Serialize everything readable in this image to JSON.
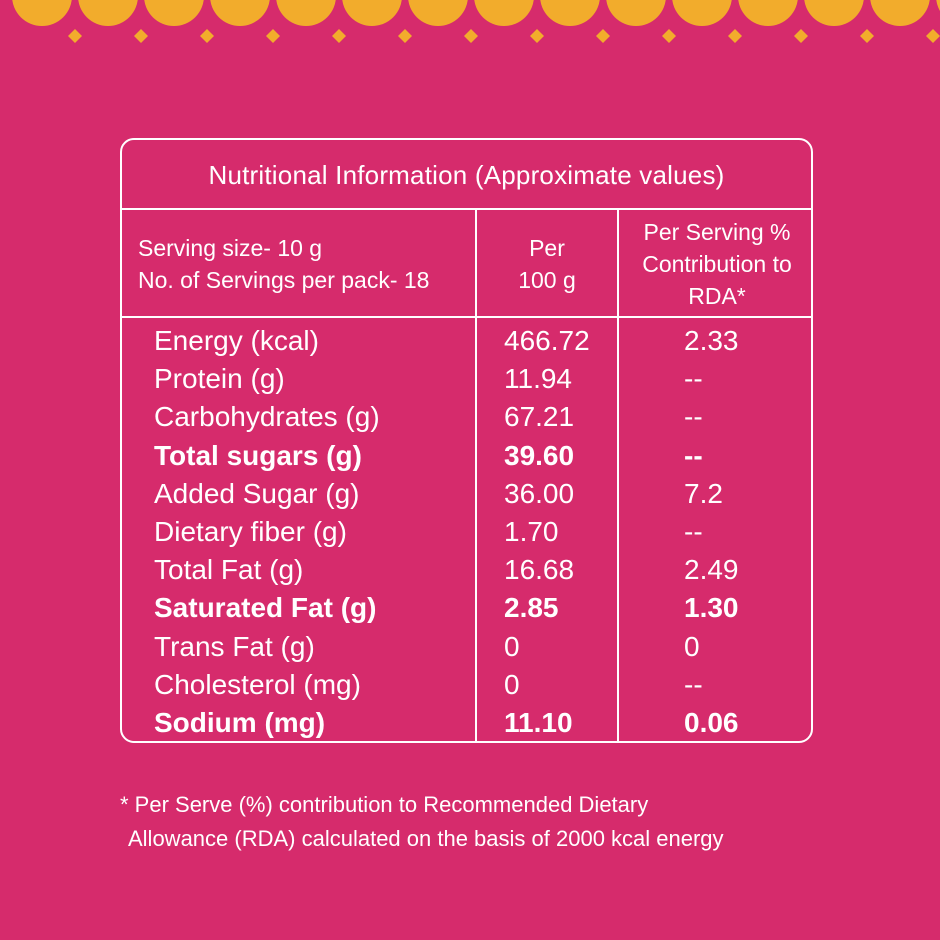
{
  "colors": {
    "background": "#d62b6c",
    "accent": "#f2ac2c",
    "text": "#ffffff"
  },
  "decoration": "scalloped-border",
  "panel": {
    "title": "Nutritional Information (Approximate values)",
    "header": {
      "serving_size": "Serving size- 10 g",
      "servings_per_pack": "No. of Servings per pack- 18",
      "per100_line1": "Per",
      "per100_line2": "100 g",
      "rda_line1": "Per Serving %",
      "rda_line2": "Contribution to",
      "rda_line3": "RDA*"
    },
    "rows": [
      {
        "name": "Energy (kcal)",
        "per100": "466.72",
        "rda": "2.33",
        "bold": false
      },
      {
        "name": "Protein (g)",
        "per100": "11.94",
        "rda": "--",
        "bold": false
      },
      {
        "name": "Carbohydrates (g)",
        "per100": "67.21",
        "rda": "--",
        "bold": false
      },
      {
        "name": "Total sugars (g)",
        "per100": "39.60",
        "rda": "--",
        "bold": true
      },
      {
        "name": "Added Sugar (g)",
        "per100": "36.00",
        "rda": "7.2",
        "bold": false
      },
      {
        "name": "Dietary fiber (g)",
        "per100": "1.70",
        "rda": "--",
        "bold": false
      },
      {
        "name": "Total Fat (g)",
        "per100": "16.68",
        "rda": "2.49",
        "bold": false
      },
      {
        "name": "Saturated Fat (g)",
        "per100": "2.85",
        "rda": "1.30",
        "bold": true
      },
      {
        "name": "Trans Fat (g)",
        "per100": "0",
        "rda": "0",
        "bold": false
      },
      {
        "name": "Cholesterol (mg)",
        "per100": "0",
        "rda": "--",
        "bold": false
      },
      {
        "name": "Sodium (mg)",
        "per100": "11.10",
        "rda": "0.06",
        "bold": true
      }
    ]
  },
  "footnote": {
    "line1": "* Per Serve (%) contribution to Recommended Dietary",
    "line2": "Allowance (RDA) calculated on the basis of 2000 kcal energy"
  }
}
